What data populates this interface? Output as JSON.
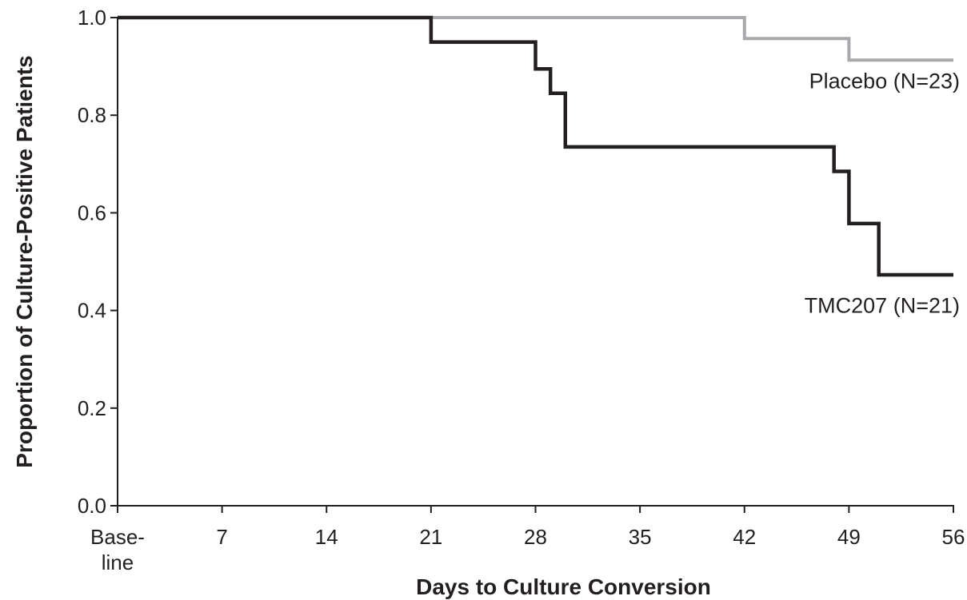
{
  "chart_data": {
    "type": "line",
    "step": true,
    "xlabel": "Days to Culture Conversion",
    "ylabel": "Proportion of Culture-Positive Patients",
    "xlim": [
      0,
      56
    ],
    "ylim": [
      0,
      1.0
    ],
    "xticks": [
      {
        "value": 0,
        "lines": [
          "Base-",
          "line"
        ]
      },
      {
        "value": 7,
        "lines": [
          "7"
        ]
      },
      {
        "value": 14,
        "lines": [
          "14"
        ]
      },
      {
        "value": 21,
        "lines": [
          "21"
        ]
      },
      {
        "value": 28,
        "lines": [
          "28"
        ]
      },
      {
        "value": 35,
        "lines": [
          "35"
        ]
      },
      {
        "value": 42,
        "lines": [
          "42"
        ]
      },
      {
        "value": 49,
        "lines": [
          "49"
        ]
      },
      {
        "value": 56,
        "lines": [
          "56"
        ]
      }
    ],
    "yticks": [
      {
        "value": 0.0,
        "label": "0.0"
      },
      {
        "value": 0.2,
        "label": "0.2"
      },
      {
        "value": 0.4,
        "label": "0.4"
      },
      {
        "value": 0.6,
        "label": "0.6"
      },
      {
        "value": 0.8,
        "label": "0.8"
      },
      {
        "value": 1.0,
        "label": "1.0"
      }
    ],
    "grid": false,
    "series": [
      {
        "name": "Placebo (N=23)",
        "color": "#a7a9ac",
        "label_anchor": [
          56,
          0.87
        ],
        "points": [
          [
            0,
            1.0
          ],
          [
            42,
            1.0
          ],
          [
            42,
            0.957
          ],
          [
            49,
            0.957
          ],
          [
            49,
            0.913
          ],
          [
            56,
            0.913
          ]
        ]
      },
      {
        "name": "TMC207 (N=21)",
        "color": "#231f20",
        "label_anchor": [
          56,
          0.41
        ],
        "points": [
          [
            0,
            1.0
          ],
          [
            21,
            1.0
          ],
          [
            21,
            0.95
          ],
          [
            28,
            0.95
          ],
          [
            28,
            0.895
          ],
          [
            29,
            0.895
          ],
          [
            29,
            0.845
          ],
          [
            30,
            0.845
          ],
          [
            30,
            0.735
          ],
          [
            48,
            0.735
          ],
          [
            48,
            0.685
          ],
          [
            49,
            0.685
          ],
          [
            49,
            0.578
          ],
          [
            51,
            0.578
          ],
          [
            51,
            0.473
          ],
          [
            56,
            0.473
          ]
        ]
      }
    ]
  }
}
